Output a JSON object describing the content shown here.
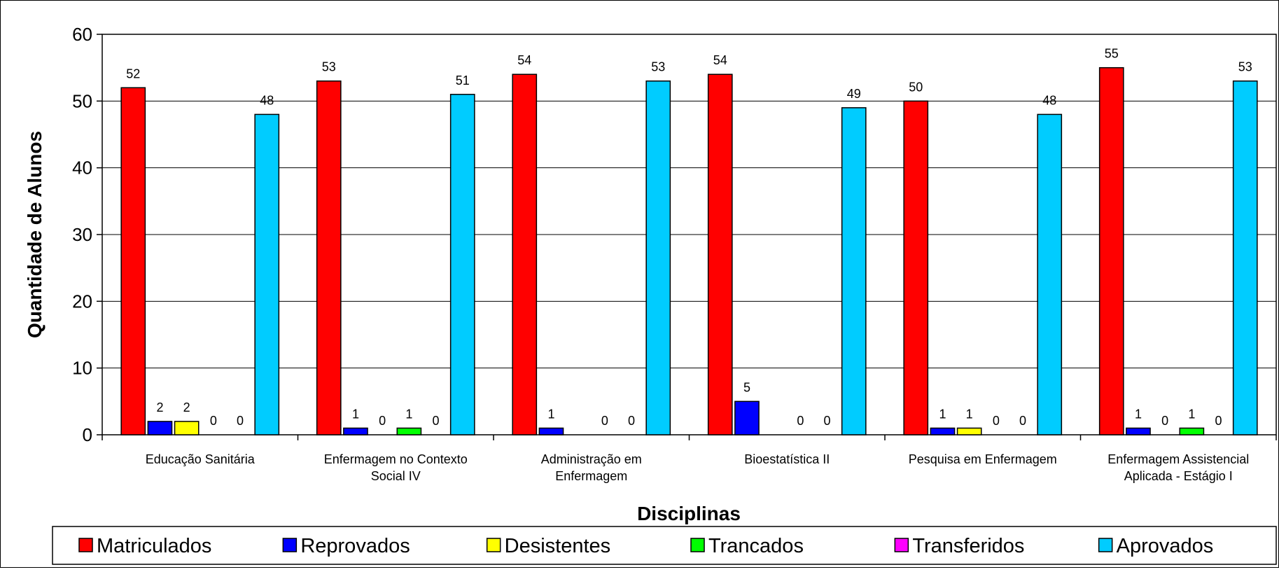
{
  "chart_data": {
    "type": "bar",
    "title": "",
    "xlabel": "Disciplinas",
    "ylabel": "Quantidade de Alunos",
    "ylim": [
      0,
      60
    ],
    "ytick_step": 10,
    "yticks": [
      "0",
      "10",
      "20",
      "30",
      "40",
      "50",
      "60"
    ],
    "grid": true,
    "legend_position": "bottom",
    "categories": [
      [
        "Educação Sanitária"
      ],
      [
        "Enfermagem no Contexto",
        "Social IV"
      ],
      [
        "Administração em",
        "Enfermagem"
      ],
      [
        "Bioestatística II"
      ],
      [
        "Pesquisa em Enfermagem"
      ],
      [
        "Enfermagem Assistencial",
        "Aplicada - Estágio I"
      ]
    ],
    "series": [
      {
        "name": "Matriculados",
        "color": "#ff0000",
        "values": [
          52,
          53,
          54,
          54,
          50,
          55
        ],
        "labels": [
          "52",
          "53",
          "54",
          "54",
          "50",
          "55"
        ]
      },
      {
        "name": "Reprovados",
        "color": "#0000ff",
        "values": [
          2,
          1,
          1,
          5,
          1,
          1
        ],
        "labels": [
          "2",
          "1",
          "1",
          "5",
          "1",
          "1"
        ]
      },
      {
        "name": "Desistentes",
        "color": "#ffff00",
        "values": [
          2,
          0,
          null,
          null,
          1,
          0
        ],
        "labels": [
          "2",
          "0",
          "",
          "",
          "1",
          "0"
        ]
      },
      {
        "name": "Trancados",
        "color": "#00ff00",
        "values": [
          0,
          1,
          0,
          0,
          0,
          1
        ],
        "labels": [
          "0",
          "1",
          "0",
          "0",
          "0",
          "1"
        ]
      },
      {
        "name": "Transferidos",
        "color": "#ff00ff",
        "values": [
          0,
          0,
          0,
          0,
          0,
          0
        ],
        "labels": [
          "0",
          "0",
          "0",
          "0",
          "0",
          "0"
        ]
      },
      {
        "name": "Aprovados",
        "color": "#00ccff",
        "values": [
          48,
          51,
          53,
          49,
          48,
          53
        ],
        "labels": [
          "48",
          "51",
          "53",
          "49",
          "48",
          "53"
        ]
      }
    ]
  }
}
